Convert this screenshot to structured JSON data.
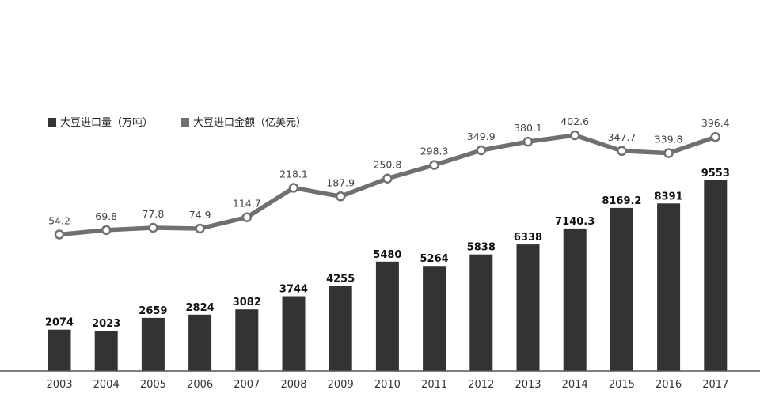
{
  "chart_data": {
    "type": "bar",
    "categories": [
      "2003",
      "2004",
      "2005",
      "2006",
      "2007",
      "2008",
      "2009",
      "2010",
      "2011",
      "2012",
      "2013",
      "2014",
      "2015",
      "2016",
      "2017"
    ],
    "series": [
      {
        "name": "大豆进口量（万吨）",
        "type": "bar",
        "color": "#333333",
        "values": [
          2074,
          2023,
          2659,
          2824,
          3082,
          3744,
          4255,
          5480,
          5264,
          5838,
          6338,
          7140.3,
          8169.2,
          8391,
          9553
        ],
        "labels": [
          "2074",
          "2023",
          "2659",
          "2824",
          "3082",
          "3744",
          "4255",
          "5480",
          "5264",
          "5838",
          "6338",
          "7140.3",
          "8169.2",
          "8391",
          "9553"
        ]
      },
      {
        "name": "大豆进口金额（亿美元）",
        "type": "line",
        "color": "#707070",
        "values": [
          54.2,
          69.8,
          77.8,
          74.9,
          114.7,
          218.1,
          187.9,
          250.8,
          298.3,
          349.9,
          380.1,
          402.6,
          347.7,
          339.8,
          396.4
        ],
        "labels": [
          "54.2",
          "69.8",
          "77.8",
          "74.9",
          "114.7",
          "218.1",
          "187.9",
          "250.8",
          "298.3",
          "349.9",
          "380.1",
          "402.6",
          "347.7",
          "339.8",
          "396.4"
        ]
      }
    ],
    "legend": {
      "position": "top-left",
      "items": [
        "大豆进口量（万吨）",
        "大豆进口金额（亿美元）"
      ]
    },
    "grid": false,
    "y_axis_visible": false
  }
}
